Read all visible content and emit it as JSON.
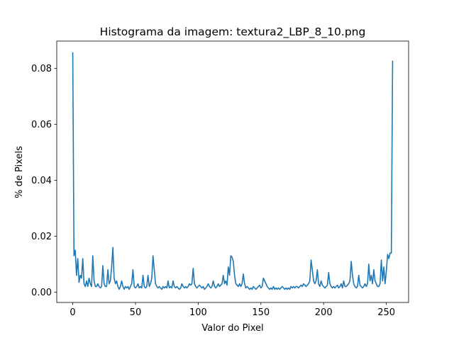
{
  "chart_data": {
    "type": "line",
    "title": "Histograma da imagem: textura2_LBP_8_10.png",
    "xlabel": "Valor do Pixel",
    "ylabel": "% de Pixels",
    "color": "#1f77b4",
    "xlim": [
      -12.75,
      267.75
    ],
    "ylim": [
      -0.0037,
      0.0898
    ],
    "xticks": [
      0,
      50,
      100,
      150,
      200,
      250
    ],
    "yticks": [
      {
        "value": 0,
        "label": "0.00"
      },
      {
        "value": 0.02,
        "label": "0.02"
      },
      {
        "value": 0.04,
        "label": "0.04"
      },
      {
        "value": 0.06,
        "label": "0.06"
      },
      {
        "value": 0.08,
        "label": "0.08"
      }
    ],
    "x": [
      0,
      1,
      2,
      3,
      4,
      5,
      6,
      7,
      8,
      9,
      10,
      11,
      12,
      13,
      14,
      15,
      16,
      17,
      18,
      19,
      20,
      21,
      22,
      23,
      24,
      25,
      26,
      27,
      28,
      29,
      30,
      31,
      32,
      33,
      34,
      35,
      36,
      37,
      38,
      39,
      40,
      41,
      42,
      43,
      44,
      45,
      46,
      47,
      48,
      49,
      50,
      51,
      52,
      53,
      54,
      55,
      56,
      57,
      58,
      59,
      60,
      61,
      62,
      63,
      64,
      65,
      66,
      67,
      68,
      69,
      70,
      71,
      72,
      73,
      74,
      75,
      76,
      77,
      78,
      79,
      80,
      81,
      82,
      83,
      84,
      85,
      86,
      87,
      88,
      89,
      90,
      91,
      92,
      93,
      94,
      95,
      96,
      97,
      98,
      99,
      100,
      101,
      102,
      103,
      104,
      105,
      106,
      107,
      108,
      109,
      110,
      111,
      112,
      113,
      114,
      115,
      116,
      117,
      118,
      119,
      120,
      121,
      122,
      123,
      124,
      125,
      126,
      127,
      128,
      129,
      130,
      131,
      132,
      133,
      134,
      135,
      136,
      137,
      138,
      139,
      140,
      141,
      142,
      143,
      144,
      145,
      146,
      147,
      148,
      149,
      150,
      151,
      152,
      153,
      154,
      155,
      156,
      157,
      158,
      159,
      160,
      161,
      162,
      163,
      164,
      165,
      166,
      167,
      168,
      169,
      170,
      171,
      172,
      173,
      174,
      175,
      176,
      177,
      178,
      179,
      180,
      181,
      182,
      183,
      184,
      185,
      186,
      187,
      188,
      189,
      190,
      191,
      192,
      193,
      194,
      195,
      196,
      197,
      198,
      199,
      200,
      201,
      202,
      203,
      204,
      205,
      206,
      207,
      208,
      209,
      210,
      211,
      212,
      213,
      214,
      215,
      216,
      217,
      218,
      219,
      220,
      221,
      222,
      223,
      224,
      225,
      226,
      227,
      228,
      229,
      230,
      231,
      232,
      233,
      234,
      235,
      236,
      237,
      238,
      239,
      240,
      241,
      242,
      243,
      244,
      245,
      246,
      247,
      248,
      249,
      250,
      251,
      252,
      253,
      254,
      255
    ],
    "values": [
      0.0858,
      0.013,
      0.015,
      0.006,
      0.012,
      0.0035,
      0.006,
      0.005,
      0.012,
      0.003,
      0.002,
      0.004,
      0.002,
      0.005,
      0.003,
      0.002,
      0.013,
      0.004,
      0.002,
      0.002,
      0.003,
      0.002,
      0.0015,
      0.002,
      0.0095,
      0.003,
      0.002,
      0.002,
      0.008,
      0.003,
      0.004,
      0.009,
      0.016,
      0.005,
      0.003,
      0.004,
      0.002,
      0.001,
      0.002,
      0.004,
      0.002,
      0.001,
      0.002,
      0.0015,
      0.002,
      0.001,
      0.002,
      0.003,
      0.008,
      0.002,
      0.0015,
      0.002,
      0.003,
      0.0015,
      0.002,
      0.0015,
      0.006,
      0.002,
      0.0015,
      0.002,
      0.006,
      0.002,
      0.003,
      0.005,
      0.013,
      0.008,
      0.003,
      0.002,
      0.0015,
      0.002,
      0.0015,
      0.001,
      0.002,
      0.0015,
      0.002,
      0.0015,
      0.004,
      0.0015,
      0.002,
      0.0015,
      0.004,
      0.002,
      0.0015,
      0.002,
      0.0015,
      0.001,
      0.0015,
      0.003,
      0.002,
      0.0015,
      0.002,
      0.0015,
      0.002,
      0.003,
      0.0025,
      0.003,
      0.0085,
      0.003,
      0.002,
      0.0015,
      0.002,
      0.0025,
      0.002,
      0.0015,
      0.002,
      0.001,
      0.0015,
      0.002,
      0.003,
      0.002,
      0.0015,
      0.002,
      0.004,
      0.002,
      0.0015,
      0.002,
      0.003,
      0.002,
      0.0025,
      0.003,
      0.006,
      0.003,
      0.004,
      0.0025,
      0.009,
      0.006,
      0.013,
      0.0125,
      0.011,
      0.006,
      0.003,
      0.0025,
      0.002,
      0.003,
      0.002,
      0.003,
      0.0065,
      0.003,
      0.0015,
      0.002,
      0.0015,
      0.001,
      0.0015,
      0.001,
      0.002,
      0.0015,
      0.001,
      0.0015,
      0.002,
      0.0025,
      0.0015,
      0.002,
      0.005,
      0.004,
      0.003,
      0.002,
      0.0015,
      0.001,
      0.0015,
      0.001,
      0.002,
      0.001,
      0.0015,
      0.001,
      0.0015,
      0.001,
      0.0015,
      0.002,
      0.0015,
      0.001,
      0.0015,
      0.001,
      0.0015,
      0.001,
      0.002,
      0.0015,
      0.002,
      0.0015,
      0.002,
      0.002,
      0.0015,
      0.002,
      0.0025,
      0.002,
      0.003,
      0.0025,
      0.002,
      0.0025,
      0.003,
      0.004,
      0.0115,
      0.008,
      0.004,
      0.003,
      0.004,
      0.008,
      0.003,
      0.002,
      0.004,
      0.0025,
      0.002,
      0.0015,
      0.002,
      0.0025,
      0.007,
      0.003,
      0.002,
      0.0015,
      0.002,
      0.0015,
      0.002,
      0.0025,
      0.0015,
      0.002,
      0.003,
      0.0015,
      0.004,
      0.002,
      0.002,
      0.0025,
      0.003,
      0.004,
      0.011,
      0.006,
      0.003,
      0.002,
      0.0015,
      0.002,
      0.006,
      0.0025,
      0.002,
      0.0015,
      0.002,
      0.003,
      0.002,
      0.003,
      0.01,
      0.004,
      0.006,
      0.003,
      0.008,
      0.004,
      0.003,
      0.002,
      0.002,
      0.003,
      0.0115,
      0.004,
      0.009,
      0.003,
      0.0075,
      0.0135,
      0.012,
      0.014,
      0.014,
      0.0828
    ]
  }
}
